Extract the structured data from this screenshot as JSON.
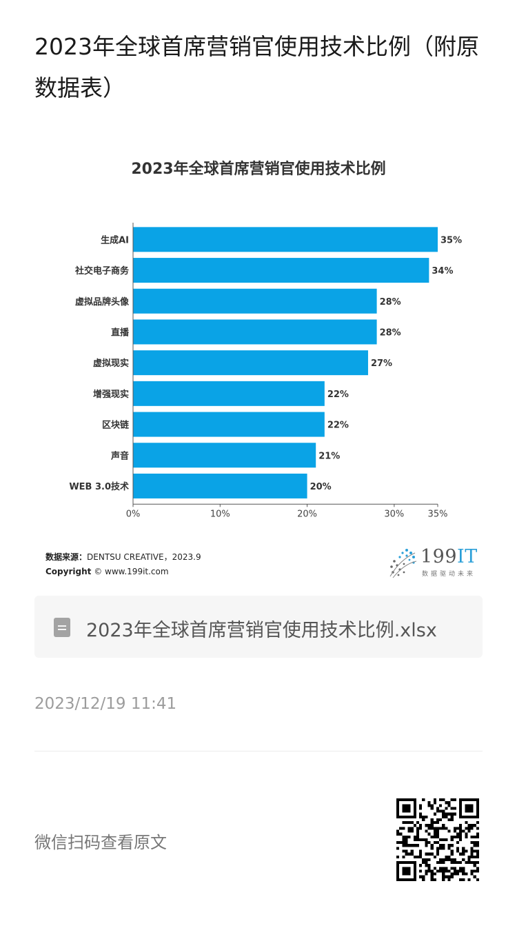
{
  "page": {
    "title": "2023年全球首席营销官使用技术比例（附原数据表）"
  },
  "chart_data": {
    "type": "bar",
    "orientation": "horizontal",
    "title": "2023年全球首席营销官使用技术比例",
    "categories": [
      "生成AI",
      "社交电子商务",
      "虚拟品牌头像",
      "直播",
      "虚拟现实",
      "增强现实",
      "区块链",
      "声音",
      "WEB 3.0技术"
    ],
    "values": [
      35,
      34,
      28,
      28,
      27,
      22,
      22,
      21,
      20
    ],
    "value_labels": [
      "35%",
      "34%",
      "28%",
      "28%",
      "27%",
      "22%",
      "22%",
      "21%",
      "20%"
    ],
    "x_ticks": [
      "0%",
      "10%",
      "20%",
      "30%",
      "35%"
    ],
    "x_tick_values": [
      0,
      10,
      20,
      30,
      35
    ],
    "xlim": [
      0,
      35
    ],
    "bar_color": "#0aa3e6",
    "grid": false
  },
  "source": {
    "label": "数据来源：",
    "text": "DENTSU CREATIVE，2023.9",
    "copyright_label": "Copyright",
    "copyright_text": "© www.199it.com"
  },
  "logo": {
    "text_main": "199",
    "text_accent": "IT",
    "slogan": "数据驱动未来"
  },
  "file": {
    "name": "2023年全球首席营销官使用技术比例.xlsx",
    "icon": "document-icon"
  },
  "timestamp": "2023/12/19 11:41",
  "footer": {
    "scan_text": "微信扫码查看原文",
    "qr_icon": "qr-code-icon"
  }
}
